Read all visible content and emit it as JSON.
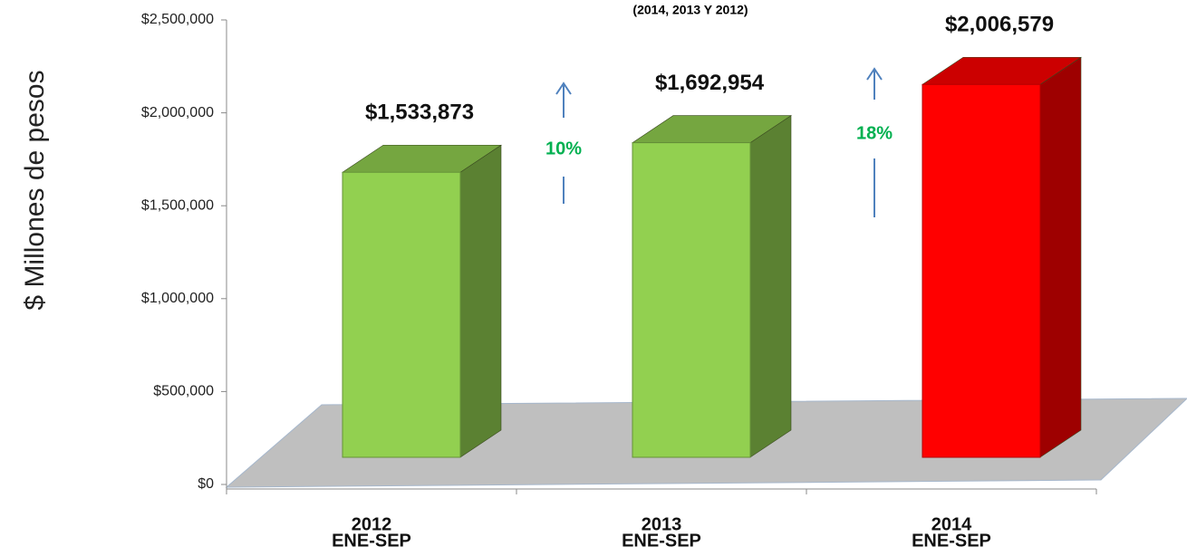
{
  "chart_data": {
    "type": "bar3d",
    "subtitle": "(2014, 2013 Y 2012)",
    "y_label": "$ Millones de pesos",
    "categories": [
      [
        "2012",
        "ENE-SEP"
      ],
      [
        "2013",
        "ENE-SEP"
      ],
      [
        "2014",
        "ENE-SEP"
      ]
    ],
    "values": [
      1533873,
      1692954,
      2006579
    ],
    "value_labels": [
      "$1,533,873",
      "$1,692,954",
      "$2,006,579"
    ],
    "colors": [
      "#92d050",
      "#92d050",
      "#ff0000"
    ],
    "ylim": [
      0,
      2500000
    ],
    "yticks": [
      {
        "value": 0,
        "label": "$0"
      },
      {
        "value": 500000,
        "label": "$500,000"
      },
      {
        "value": 1000000,
        "label": "$1,000,000"
      },
      {
        "value": 1500000,
        "label": "$1,500,000"
      },
      {
        "value": 2000000,
        "label": "$2,000,000"
      },
      {
        "value": 2500000,
        "label": "$2,500,000"
      }
    ],
    "annotations": [
      "10%",
      "18%"
    ]
  }
}
